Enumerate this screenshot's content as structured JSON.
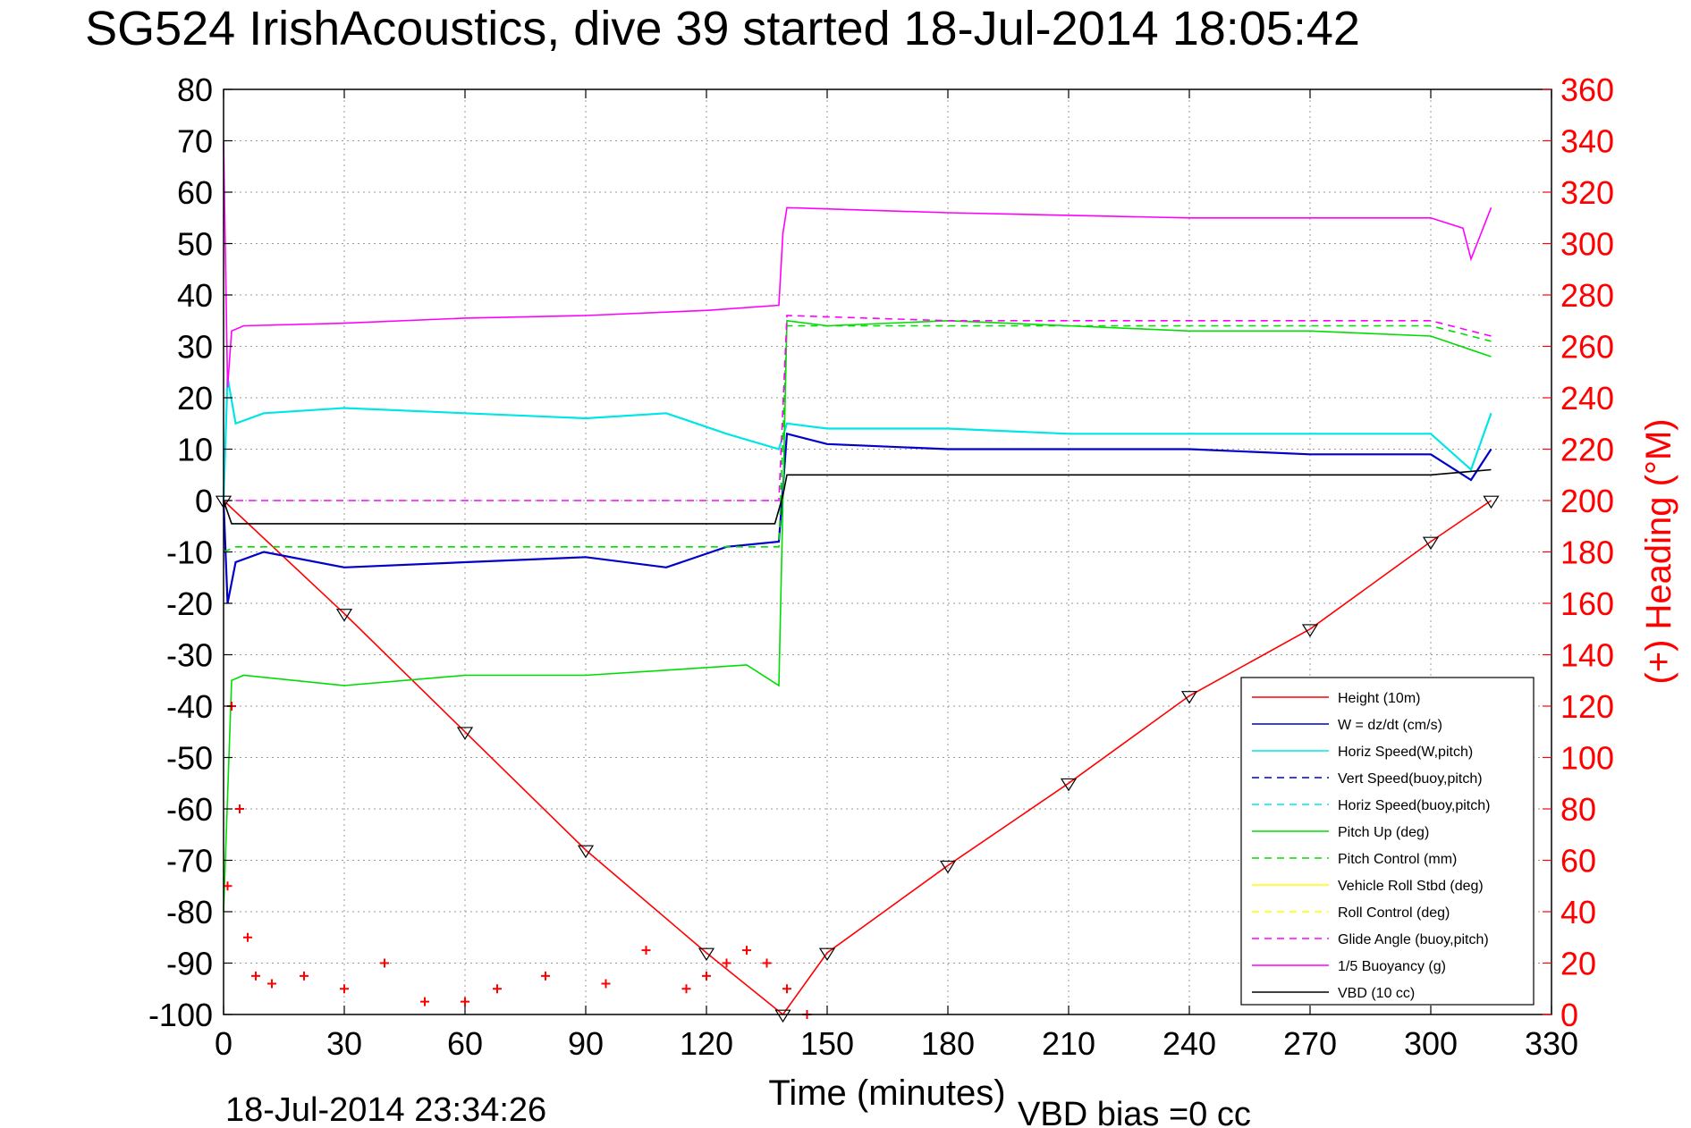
{
  "figure": {
    "title": "SG524 IrishAcoustics, dive 39 started 18-Jul-2014 18:05:42",
    "footer_left": "18-Jul-2014 23:34:26",
    "footer_right": "VBD bias =0 cc"
  },
  "colors": {
    "red": "#ff0000",
    "blue": "#0000cc",
    "cyan": "#00e5e5",
    "green": "#00dd00",
    "yellow": "#ffff00",
    "magenta": "#ff00ff",
    "black": "#000000"
  },
  "chart_data": {
    "type": "line",
    "xlabel": "Time (minutes)",
    "ylabel": "",
    "y2label": "(+) Heading (°M)",
    "xlim": [
      0,
      330
    ],
    "ylim": [
      -100,
      80
    ],
    "y2lim": [
      0,
      360
    ],
    "xticks": [
      0,
      30,
      60,
      90,
      120,
      150,
      180,
      210,
      240,
      270,
      300,
      330
    ],
    "yticks": [
      80,
      70,
      60,
      50,
      40,
      30,
      20,
      10,
      0,
      -10,
      -20,
      -30,
      -40,
      -50,
      -60,
      -70,
      -80,
      -90,
      -100
    ],
    "y2ticks": [
      360,
      340,
      320,
      300,
      280,
      260,
      240,
      220,
      200,
      180,
      160,
      140,
      120,
      100,
      80,
      60,
      40,
      20,
      0
    ],
    "grid": true,
    "legend_position": "bottom-right",
    "legend": [
      {
        "label": "Height (10m)",
        "color": "#ff0000",
        "style": "solid"
      },
      {
        "label": "W = dz/dt (cm/s)",
        "color": "#0000cc",
        "style": "solid"
      },
      {
        "label": "Horiz Speed(W,pitch)",
        "color": "#00e5e5",
        "style": "solid"
      },
      {
        "label": "Vert Speed(buoy,pitch)",
        "color": "#0000cc",
        "style": "dashed"
      },
      {
        "label": "Horiz Speed(buoy,pitch)",
        "color": "#00e5e5",
        "style": "dashed"
      },
      {
        "label": "Pitch Up (deg)",
        "color": "#00dd00",
        "style": "solid"
      },
      {
        "label": "Pitch Control (mm)",
        "color": "#00dd00",
        "style": "dashed"
      },
      {
        "label": "Vehicle Roll Stbd (deg)",
        "color": "#ffff00",
        "style": "solid"
      },
      {
        "label": "Roll Control (deg)",
        "color": "#ffff00",
        "style": "dashed"
      },
      {
        "label": "Glide Angle (buoy,pitch)",
        "color": "#ff00ff",
        "style": "dashed"
      },
      {
        "label": "1/5 Buoyancy (g)",
        "color": "#ff00ff",
        "style": "solid"
      },
      {
        "label": "VBD (10 cc)",
        "color": "#000000",
        "style": "solid"
      }
    ],
    "series": [
      {
        "name": "Height (10m)",
        "x": [
          0,
          30,
          60,
          90,
          120,
          139,
          150,
          180,
          210,
          240,
          270,
          300,
          315
        ],
        "y": [
          0,
          -22,
          -45,
          -68,
          -88,
          -100,
          -88,
          -71,
          -55,
          -38,
          -25,
          -8,
          0
        ]
      },
      {
        "name": "W = dz/dt (cm/s)",
        "x": [
          0,
          1,
          3,
          10,
          30,
          60,
          90,
          110,
          125,
          138,
          140,
          150,
          180,
          210,
          240,
          270,
          300,
          310,
          315
        ],
        "y": [
          0,
          -20,
          -12,
          -10,
          -13,
          -12,
          -11,
          -13,
          -9,
          -8,
          13,
          11,
          10,
          10,
          10,
          9,
          9,
          4,
          10
        ]
      },
      {
        "name": "Horiz Speed(W,pitch)",
        "x": [
          0,
          1,
          3,
          10,
          30,
          60,
          90,
          110,
          125,
          138,
          140,
          150,
          180,
          210,
          240,
          270,
          300,
          310,
          315
        ],
        "y": [
          0,
          24,
          15,
          17,
          18,
          17,
          16,
          17,
          13,
          10,
          15,
          14,
          14,
          13,
          13,
          13,
          13,
          6,
          17
        ]
      },
      {
        "name": "Pitch Up (deg)",
        "x": [
          0,
          2,
          5,
          30,
          60,
          90,
          110,
          130,
          138,
          140,
          150,
          180,
          210,
          240,
          270,
          300,
          315
        ],
        "y": [
          -80,
          -35,
          -34,
          -36,
          -34,
          -34,
          -33,
          -32,
          -36,
          35,
          34,
          35,
          34,
          33,
          33,
          32,
          28
        ]
      },
      {
        "name": "Pitch Control (mm)",
        "x": [
          0,
          3,
          30,
          60,
          90,
          120,
          138,
          140,
          180,
          240,
          300,
          315
        ],
        "y": [
          -10,
          -9,
          -9,
          -9,
          -9,
          -9,
          -9,
          34,
          34,
          34,
          34,
          31
        ]
      },
      {
        "name": "Glide Angle (buoy,pitch)",
        "x": [
          0,
          3,
          30,
          60,
          90,
          120,
          138,
          140,
          180,
          240,
          300,
          315
        ],
        "y": [
          0,
          0,
          0,
          0,
          0,
          0,
          0,
          36,
          35,
          35,
          35,
          32
        ]
      },
      {
        "name": "1/5 Buoyancy (g)",
        "x": [
          0,
          1,
          2,
          5,
          30,
          60,
          90,
          120,
          138,
          139,
          140,
          180,
          240,
          300,
          308,
          310,
          315
        ],
        "y": [
          70,
          22,
          33,
          34,
          34.5,
          35.5,
          36,
          37,
          38,
          52,
          57,
          56,
          55,
          55,
          53,
          47,
          57
        ]
      },
      {
        "name": "VBD (10 cc)",
        "x": [
          0,
          2,
          30,
          60,
          90,
          120,
          137,
          139,
          140,
          180,
          240,
          300,
          315
        ],
        "y": [
          0,
          -4.5,
          -4.5,
          -4.5,
          -4.5,
          -4.5,
          -4.5,
          1,
          5,
          5,
          5,
          5,
          6
        ]
      },
      {
        "name": "Heading (°M)",
        "axis": "right",
        "x": [
          1,
          2,
          4,
          6,
          8,
          12,
          20,
          30,
          40,
          50,
          60,
          68,
          80,
          95,
          105,
          115,
          120,
          125,
          130,
          135,
          140,
          145
        ],
        "y": [
          50,
          120,
          80,
          30,
          15,
          12,
          15,
          10,
          20,
          5,
          5,
          10,
          15,
          12,
          25,
          10,
          15,
          20,
          25,
          20,
          10,
          0
        ]
      }
    ]
  }
}
